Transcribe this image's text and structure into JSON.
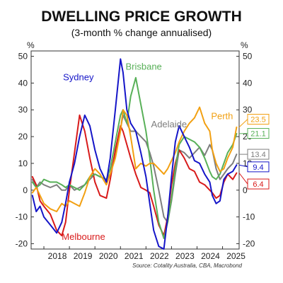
{
  "chart_data": {
    "type": "line",
    "title": "DWELLING PRICE GROWTH",
    "subtitle": "(3-month % change annualised)",
    "unit_left": "%",
    "unit_right": "%",
    "source": "Source: Cotality Australia, CBA, Macrobond",
    "ylim": [
      -22,
      52
    ],
    "xlim": [
      2017.5,
      2025.65
    ],
    "yticks": [
      -20,
      -10,
      0,
      10,
      20,
      30,
      40,
      50
    ],
    "ytick_labels": [
      "-20",
      "-10",
      "0",
      "10",
      "20",
      "30",
      "40",
      "50"
    ],
    "xticks": [
      2018,
      2019,
      2020,
      2021,
      2022,
      2023,
      2024,
      2025
    ],
    "xtick_labels": [
      "2018",
      "2019",
      "2020",
      "2021",
      "2022",
      "2023",
      "2024",
      "2025"
    ],
    "grid": false,
    "series": [
      {
        "name": "Sydney",
        "color": "#1515c8",
        "end_label": "9.4",
        "x": [
          2017.55,
          2017.7,
          2017.85,
          2018.0,
          2018.25,
          2018.5,
          2018.7,
          2018.85,
          2019.0,
          2019.2,
          2019.4,
          2019.6,
          2019.8,
          2020.0,
          2020.2,
          2020.45,
          2020.6,
          2020.8,
          2021.0,
          2021.1,
          2021.25,
          2021.4,
          2021.6,
          2021.8,
          2022.0,
          2022.15,
          2022.3,
          2022.5,
          2022.7,
          2022.85,
          2023.0,
          2023.15,
          2023.3,
          2023.5,
          2023.7,
          2023.9,
          2024.1,
          2024.3,
          2024.5,
          2024.6,
          2024.75,
          2024.9,
          2025.05,
          2025.2,
          2025.4,
          2025.55
        ],
        "values": [
          -2,
          -8,
          -6,
          -10,
          -13,
          -16,
          -12,
          -5,
          3,
          10,
          20,
          28,
          24,
          15,
          8,
          3,
          12,
          30,
          49,
          44,
          30,
          25,
          22,
          14,
          5,
          -5,
          -15,
          -21,
          -22,
          -10,
          5,
          18,
          24,
          20,
          16,
          11,
          10,
          6,
          3,
          -2,
          -5,
          -4,
          4,
          6,
          7,
          9.4
        ]
      },
      {
        "name": "Melbourne",
        "color": "#d81a1a",
        "end_label": "6.4",
        "x": [
          2017.55,
          2017.7,
          2017.85,
          2018.0,
          2018.25,
          2018.5,
          2018.7,
          2018.85,
          2019.0,
          2019.2,
          2019.4,
          2019.6,
          2019.8,
          2020.0,
          2020.2,
          2020.45,
          2020.6,
          2020.8,
          2021.0,
          2021.1,
          2021.25,
          2021.4,
          2021.6,
          2021.8,
          2022.0,
          2022.15,
          2022.3,
          2022.5,
          2022.7,
          2022.85,
          2023.0,
          2023.15,
          2023.3,
          2023.5,
          2023.7,
          2023.9,
          2024.1,
          2024.3,
          2024.5,
          2024.6,
          2024.75,
          2024.9,
          2025.05,
          2025.2,
          2025.4,
          2025.55
        ],
        "values": [
          5,
          2,
          -4,
          -6,
          -9,
          -15,
          -17,
          -12,
          0,
          14,
          28,
          22,
          12,
          3,
          -2,
          -3,
          4,
          15,
          24,
          22,
          17,
          12,
          6,
          1,
          0,
          -1,
          -6,
          -13,
          -17,
          -10,
          2,
          10,
          15,
          12,
          8,
          7,
          3,
          2,
          0,
          -1,
          -3,
          -2,
          3,
          6,
          4,
          6.4
        ]
      },
      {
        "name": "Brisbane",
        "color": "#58b058",
        "end_label": "21.1",
        "x": [
          2017.55,
          2017.7,
          2017.85,
          2018.0,
          2018.25,
          2018.5,
          2018.7,
          2018.85,
          2019.0,
          2019.2,
          2019.4,
          2019.6,
          2019.8,
          2020.0,
          2020.2,
          2020.45,
          2020.6,
          2020.8,
          2021.0,
          2021.1,
          2021.25,
          2021.4,
          2021.6,
          2021.8,
          2022.0,
          2022.15,
          2022.3,
          2022.5,
          2022.7,
          2022.85,
          2023.0,
          2023.15,
          2023.3,
          2023.5,
          2023.7,
          2023.9,
          2024.1,
          2024.3,
          2024.5,
          2024.6,
          2024.75,
          2024.9,
          2025.05,
          2025.2,
          2025.4,
          2025.55
        ],
        "values": [
          3,
          1,
          2,
          4,
          3,
          3,
          2,
          1,
          2,
          1,
          0,
          2,
          5,
          6,
          5,
          4,
          8,
          18,
          28,
          30,
          25,
          35,
          42,
          32,
          22,
          12,
          0,
          -12,
          -18,
          -12,
          -3,
          8,
          17,
          20,
          19,
          18,
          16,
          12,
          7,
          5,
          4,
          6,
          10,
          14,
          17,
          21.1
        ]
      },
      {
        "name": "Adelaide",
        "color": "#7e7e7e",
        "end_label": "13.4",
        "x": [
          2017.55,
          2017.7,
          2017.85,
          2018.0,
          2018.25,
          2018.5,
          2018.7,
          2018.85,
          2019.0,
          2019.2,
          2019.4,
          2019.6,
          2019.8,
          2020.0,
          2020.2,
          2020.45,
          2020.6,
          2020.8,
          2021.0,
          2021.1,
          2021.25,
          2021.4,
          2021.6,
          2021.8,
          2022.0,
          2022.15,
          2022.3,
          2022.5,
          2022.7,
          2022.85,
          2023.0,
          2023.15,
          2023.3,
          2023.5,
          2023.7,
          2023.9,
          2024.1,
          2024.3,
          2024.5,
          2024.6,
          2024.75,
          2024.9,
          2025.05,
          2025.2,
          2025.4,
          2025.55
        ],
        "values": [
          4,
          1,
          3,
          2,
          1,
          2,
          0,
          0,
          2,
          0,
          1,
          2,
          4,
          6,
          5,
          4,
          6,
          14,
          23,
          28,
          25,
          22,
          22,
          20,
          18,
          14,
          9,
          0,
          -10,
          -12,
          -4,
          6,
          15,
          14,
          12,
          14,
          16,
          13,
          17,
          15,
          8,
          4,
          6,
          8,
          10,
          13.4
        ]
      },
      {
        "name": "Perth",
        "color": "#f2a012",
        "end_label": "23.5",
        "x": [
          2017.55,
          2017.7,
          2017.85,
          2018.0,
          2018.25,
          2018.5,
          2018.7,
          2018.85,
          2019.0,
          2019.2,
          2019.4,
          2019.6,
          2019.8,
          2020.0,
          2020.2,
          2020.45,
          2020.6,
          2020.8,
          2021.0,
          2021.1,
          2021.25,
          2021.4,
          2021.6,
          2021.8,
          2022.0,
          2022.15,
          2022.3,
          2022.5,
          2022.7,
          2022.85,
          2023.0,
          2023.15,
          2023.3,
          2023.5,
          2023.7,
          2023.9,
          2024.1,
          2024.3,
          2024.5,
          2024.6,
          2024.75,
          2024.9,
          2025.05,
          2025.2,
          2025.4,
          2025.55
        ],
        "values": [
          -1,
          1,
          -2,
          -5,
          -7,
          -8,
          -5,
          -6,
          -4,
          -5,
          -6,
          -1,
          5,
          8,
          6,
          2,
          6,
          12,
          22,
          30,
          28,
          20,
          8,
          10,
          9,
          10,
          10,
          8,
          6,
          8,
          11,
          14,
          18,
          22,
          25,
          27,
          31,
          25,
          22,
          15,
          10,
          7,
          8,
          12,
          16,
          23.5
        ]
      }
    ]
  }
}
